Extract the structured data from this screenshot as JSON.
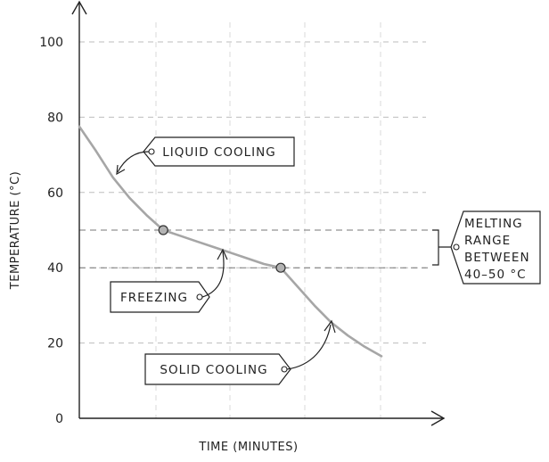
{
  "chart_data": {
    "type": "line",
    "title": "",
    "xlabel": "TIME (MINUTES)",
    "ylabel": "TEMPERATURE (°C)",
    "ylim": [
      0,
      100
    ],
    "yticks": [
      0,
      20,
      40,
      60,
      80,
      100
    ],
    "grid": true,
    "series": [
      {
        "x": [
          0,
          0.5,
          1,
          1.5,
          2,
          2.5,
          3,
          3.5,
          4,
          4.5,
          5,
          5.5,
          6,
          6.5,
          7,
          7.5,
          8,
          8.5,
          9
        ],
        "y": [
          77.5,
          71,
          64,
          58.5,
          54,
          50,
          48.5,
          47,
          45.5,
          44,
          42.5,
          41,
          40,
          35,
          30,
          25.5,
          22,
          19,
          16.5
        ]
      }
    ],
    "points": [
      {
        "x": 2.5,
        "y": 50
      },
      {
        "x": 6,
        "y": 40
      }
    ],
    "reference_lines": [
      50,
      40
    ],
    "annotations": {
      "liquid_cooling": "LIQUID COOLING",
      "freezing": "FREEZING",
      "solid_cooling": "SOLID COOLING",
      "melting_range": [
        "MELTING",
        "RANGE",
        "BETWEEN",
        "40–50 °C"
      ]
    }
  }
}
